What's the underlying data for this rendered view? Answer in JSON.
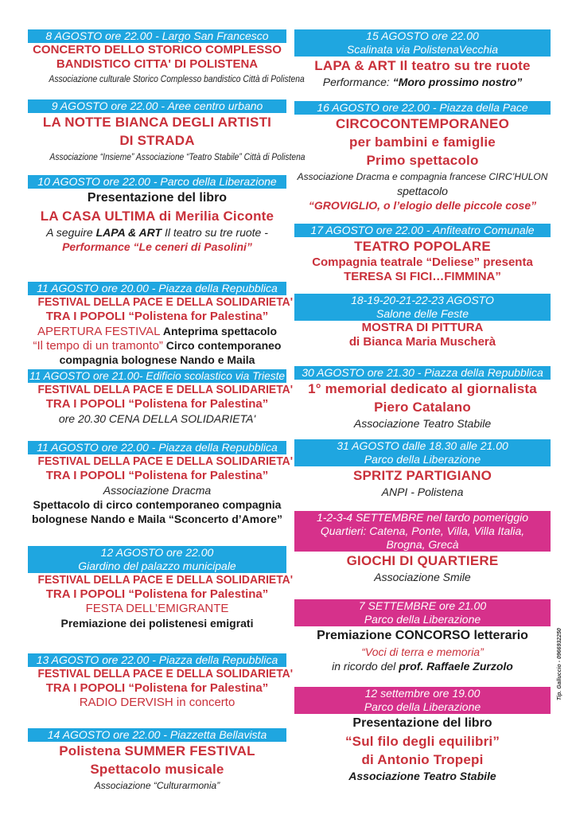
{
  "colors": {
    "blue": "#1fa6e0",
    "pink": "#d6318b",
    "red": "#c9303a"
  },
  "left_column": [
    {
      "header": [
        "8 AGOSTO ore 22.00 - Largo San Francesco"
      ],
      "header_color": "#1fa6e0",
      "body": [
        [
          {
            "text": "CONCERTO DELLO STORICO COMPLESSO",
            "style": "t"
          }
        ],
        [
          {
            "text": "BANDISTICO CITTA' DI POLISTENA",
            "style": "t"
          }
        ],
        [
          {
            "text": "Associazione culturale Storico Complesso bandistico Città di Polistena",
            "style": "s"
          }
        ]
      ]
    },
    {
      "header": [
        "9 AGOSTO ore 22.00 - Aree centro urbano"
      ],
      "header_color": "#1fa6e0",
      "body": [
        [
          {
            "text": "LA NOTTE BIANCA DEGLI ARTISTI",
            "style": "T"
          }
        ],
        [
          {
            "text": "DI STRADA",
            "style": "T"
          }
        ],
        [
          {
            "text": "Associazione “Insieme” Associazione “Teatro Stabile” Città di Polistena",
            "style": "s"
          }
        ]
      ]
    },
    {
      "header": [
        "10 AGOSTO ore 22.00 - Parco della Liberazione"
      ],
      "header_color": "#1fa6e0",
      "body": [
        [
          {
            "text": "Presentazione del libro",
            "style": "B"
          }
        ],
        [
          {
            "text": "LA CASA ULTIMA di Merilia Ciconte",
            "style": "T"
          }
        ],
        [
          {
            "text": "A seguire ",
            "style": "i"
          },
          {
            "text": "LAPA & ART",
            "style": "bi"
          },
          {
            "text": " Il teatro su tre ruote -",
            "style": "i"
          }
        ],
        [
          {
            "text": "Performance “Le ceneri di Pasolini”",
            "style": "ri"
          }
        ]
      ]
    },
    {
      "header": [
        "11 AGOSTO ore 20.00  - Piazza della Repubblica"
      ],
      "header_color": "#1fa6e0",
      "body": [
        [
          {
            "text": "FESTIVAL DELLA PACE E DELLA SOLIDARIETA'",
            "style": "t"
          }
        ],
        [
          {
            "text": "TRA I POPOLI “Polistena for Palestina”",
            "style": "t"
          }
        ],
        [
          {
            "text": "APERTURA FESTIVAL",
            "style": "r"
          },
          {
            "text": " Anteprima spettacolo",
            "style": "b"
          }
        ],
        [
          {
            "text": "“Il tempo di un tramonto”",
            "style": "r"
          },
          {
            "text": " Circo contemporaneo",
            "style": "b"
          }
        ],
        [
          {
            "text": "compagnia bolognese Nando e Maila",
            "style": "b"
          }
        ]
      ]
    },
    {
      "header": [
        "11 AGOSTO ore 21.00- Edificio scolastico via Trieste"
      ],
      "header_color": "#1fa6e0",
      "body": [
        [
          {
            "text": "FESTIVAL DELLA PACE E DELLA SOLIDARIETA'",
            "style": "t"
          }
        ],
        [
          {
            "text": "TRA I POPOLI “Polistena for Palestina”",
            "style": "t"
          }
        ],
        [
          {
            "text": "ore 20.30 CENA DELLA SOLIDARIETA'",
            "style": "i"
          }
        ]
      ]
    },
    {
      "header": [
        "11 AGOSTO ore 22.00  - Piazza della Repubblica"
      ],
      "header_color": "#1fa6e0",
      "body": [
        [
          {
            "text": "FESTIVAL DELLA PACE E DELLA SOLIDARIETA'",
            "style": "t"
          }
        ],
        [
          {
            "text": "TRA I POPOLI “Polistena for Palestina”",
            "style": "t"
          }
        ],
        [
          {
            "text": "Associazione Dracma",
            "style": "i"
          }
        ],
        [
          {
            "text": "Spettacolo di circo contemporaneo compagnia",
            "style": "b"
          }
        ],
        [
          {
            "text": "bolognese Nando e Maila “Sconcerto d’Amore”",
            "style": "b"
          }
        ]
      ]
    },
    {
      "header": [
        "12 AGOSTO ore 22.00",
        "Giardino del palazzo municipale"
      ],
      "header_color": "#1fa6e0",
      "body": [
        [
          {
            "text": "FESTIVAL DELLA PACE E DELLA SOLIDARIETA'",
            "style": "t"
          }
        ],
        [
          {
            "text": "TRA I POPOLI “Polistena for Palestina”",
            "style": "t"
          }
        ],
        [
          {
            "text": "FESTA DELL’EMIGRANTE",
            "style": "r"
          }
        ],
        [
          {
            "text": "Premiazione dei polistenesi emigrati",
            "style": "b"
          }
        ]
      ]
    },
    {
      "header": [
        "13 AGOSTO ore 22.00 - Piazza della Repubblica"
      ],
      "header_color": "#1fa6e0",
      "body": [
        [
          {
            "text": "FESTIVAL DELLA PACE E DELLA SOLIDARIETA'",
            "style": "t"
          }
        ],
        [
          {
            "text": "TRA I POPOLI “Polistena for Palestina”",
            "style": "t"
          }
        ],
        [
          {
            "text": "RADIO DERVISH in concerto",
            "style": "r"
          }
        ]
      ]
    },
    {
      "header": [
        "14 AGOSTO ore 22.00 - Piazzetta Bellavista"
      ],
      "header_color": "#1fa6e0",
      "body": [
        [
          {
            "text": "Polistena SUMMER FESTIVAL",
            "style": "T"
          }
        ],
        [
          {
            "text": "Spettacolo musicale",
            "style": "T"
          }
        ],
        [
          {
            "text": "Associazione “Culturarmonia”",
            "style": "s"
          }
        ]
      ]
    }
  ],
  "right_column": [
    {
      "header": [
        "15 AGOSTO ore 22.00",
        "Scalinata via PolistenaVecchia"
      ],
      "header_color": "#1fa6e0",
      "body": [
        [
          {
            "text": "LAPA & ART Il teatro su tre ruote",
            "style": "T"
          }
        ],
        [
          {
            "text": "Performance: ",
            "style": "i"
          },
          {
            "text": "“Moro prossimo nostro”",
            "style": "bi"
          }
        ]
      ]
    },
    {
      "header": [
        "16 AGOSTO ore 22.00  - Piazza della Pace"
      ],
      "header_color": "#1fa6e0",
      "body": [
        [
          {
            "text": "CIRCOCONTEMPORANEO",
            "style": "T"
          }
        ],
        [
          {
            "text": "per bambini e famiglie",
            "style": "T"
          }
        ],
        [
          {
            "text": "Primo spettacolo",
            "style": "T"
          }
        ],
        [
          {
            "text": "Associazione Dracma e compagnia francese CIRC’HULON",
            "style": "s"
          }
        ],
        [
          {
            "text": "spettacolo",
            "style": "i"
          }
        ],
        [
          {
            "text": "“GROVIGLIO, o l’elogio delle piccole cose”",
            "style": "ri"
          }
        ]
      ]
    },
    {
      "header": [
        "17 AGOSTO ore 22.00 - Anfiteatro Comunale"
      ],
      "header_color": "#1fa6e0",
      "body": [
        [
          {
            "text": "TEATRO POPOLARE",
            "style": "T"
          }
        ],
        [
          {
            "text": "Compagnia teatrale “Deliese” presenta",
            "style": "t"
          }
        ],
        [
          {
            "text": "TERESA SI FICI…FIMMINA”",
            "style": "t"
          }
        ]
      ]
    },
    {
      "header": [
        "18-19-20-21-22-23 AGOSTO",
        "Salone delle Feste"
      ],
      "header_color": "#1fa6e0",
      "body": [
        [
          {
            "text": "MOSTRA DI PITTURA",
            "style": "t"
          }
        ],
        [
          {
            "text": "di Bianca Maria Muscherà",
            "style": "t"
          }
        ]
      ]
    },
    {
      "header": [
        "30 AGOSTO ore 21.30 - Piazza della Repubblica"
      ],
      "header_color": "#1fa6e0",
      "body": [
        [
          {
            "text": "1° memorial dedicato al giornalista",
            "style": "T"
          }
        ],
        [
          {
            "text": "Piero Catalano",
            "style": "T"
          }
        ],
        [
          {
            "text": "Associazione Teatro Stabile",
            "style": "i"
          }
        ]
      ]
    },
    {
      "header": [
        "31 AGOSTO  dalle 18.30 alle 21.00",
        "Parco della Liberazione"
      ],
      "header_color": "#1fa6e0",
      "body": [
        [
          {
            "text": "SPRITZ PARTIGIANO",
            "style": "T"
          }
        ],
        [
          {
            "text": "ANPI - Polistena",
            "style": "i"
          }
        ]
      ]
    },
    {
      "header": [
        "1-2-3-4 SETTEMBRE nel tardo pomeriggio",
        "Quartieri: Catena, Ponte, Villa, Villa Italia,",
        "Brogna, Grecà"
      ],
      "header_color": "#d6318b",
      "body": [
        [
          {
            "text": "GIOCHI DI QUARTIERE",
            "style": "T"
          }
        ],
        [
          {
            "text": "Associazione Smile",
            "style": "i"
          }
        ]
      ]
    },
    {
      "header": [
        "7 SETTEMBRE ore 21.00",
        "Parco della Liberazione"
      ],
      "header_color": "#d6318b",
      "body": [
        [
          {
            "text": "Premiazione CONCORSO letterario",
            "style": "B"
          }
        ],
        [
          {
            "text": "“Voci di terra e memoria”",
            "style": "ri2"
          }
        ],
        [
          {
            "text": "in ricordo del ",
            "style": "i"
          },
          {
            "text": "prof. Raffaele Zurzolo",
            "style": "bi"
          }
        ]
      ]
    },
    {
      "header": [
        "12 settembre ore 19.00",
        "Parco della Liberazione"
      ],
      "header_color": "#d6318b",
      "body": [
        [
          {
            "text": "Presentazione del libro",
            "style": "B"
          }
        ],
        [
          {
            "text": "“Sul filo degli equilibri”",
            "style": "T"
          }
        ],
        [
          {
            "text": "di Antonio Tropepi",
            "style": "T"
          }
        ],
        [
          {
            "text": "Associazione Teatro Stabile",
            "style": "bi"
          }
        ]
      ]
    }
  ],
  "printer_credit": "Tip. Galluccio - 0966932250"
}
